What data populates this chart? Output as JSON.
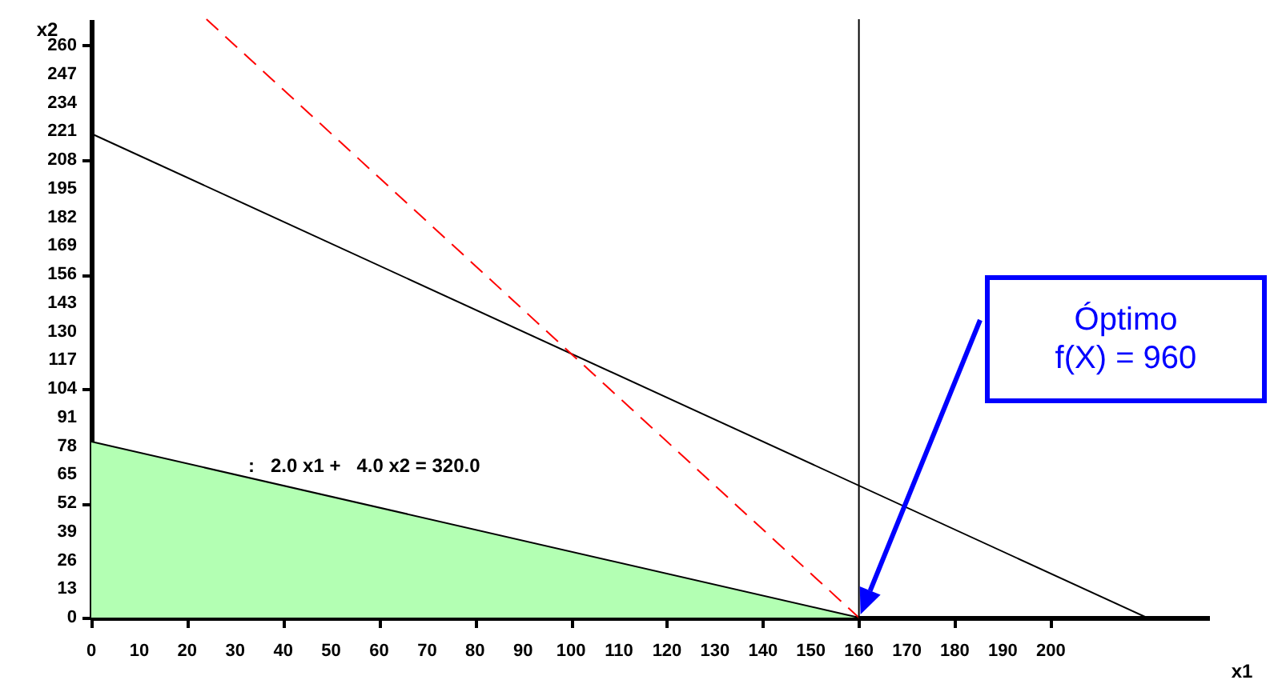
{
  "chart_data": {
    "type": "line",
    "xlabel": "x1",
    "ylabel": "x2",
    "xlim": [
      0,
      233
    ],
    "ylim": [
      0,
      272
    ],
    "xticks": [
      0,
      10,
      20,
      30,
      40,
      50,
      60,
      70,
      80,
      90,
      100,
      110,
      120,
      130,
      140,
      150,
      160,
      170,
      180,
      190,
      200
    ],
    "yticks": [
      0,
      13,
      26,
      39,
      52,
      65,
      78,
      91,
      104,
      117,
      130,
      143,
      156,
      169,
      182,
      195,
      208,
      221,
      234,
      247,
      260
    ],
    "series": [
      {
        "type": "area",
        "color": "#b3ffb3",
        "x": [
          0,
          160
        ],
        "values": [
          80,
          0
        ]
      },
      {
        "type": "line",
        "color": "#000000",
        "line_style": "solid",
        "x": [
          0,
          220
        ],
        "values": [
          220,
          0
        ]
      },
      {
        "type": "line",
        "color": "#ff0000",
        "line_style": "dashed",
        "x": [
          24,
          160
        ],
        "values": [
          272,
          0
        ]
      }
    ],
    "ref_lines": [
      {
        "axis": "x",
        "value": 160,
        "color": "#000000"
      }
    ],
    "annotations": [
      ":   2.0 x1 +   4.0 x2 = 320.0",
      "Óptimo\nf(X) = 960"
    ]
  }
}
